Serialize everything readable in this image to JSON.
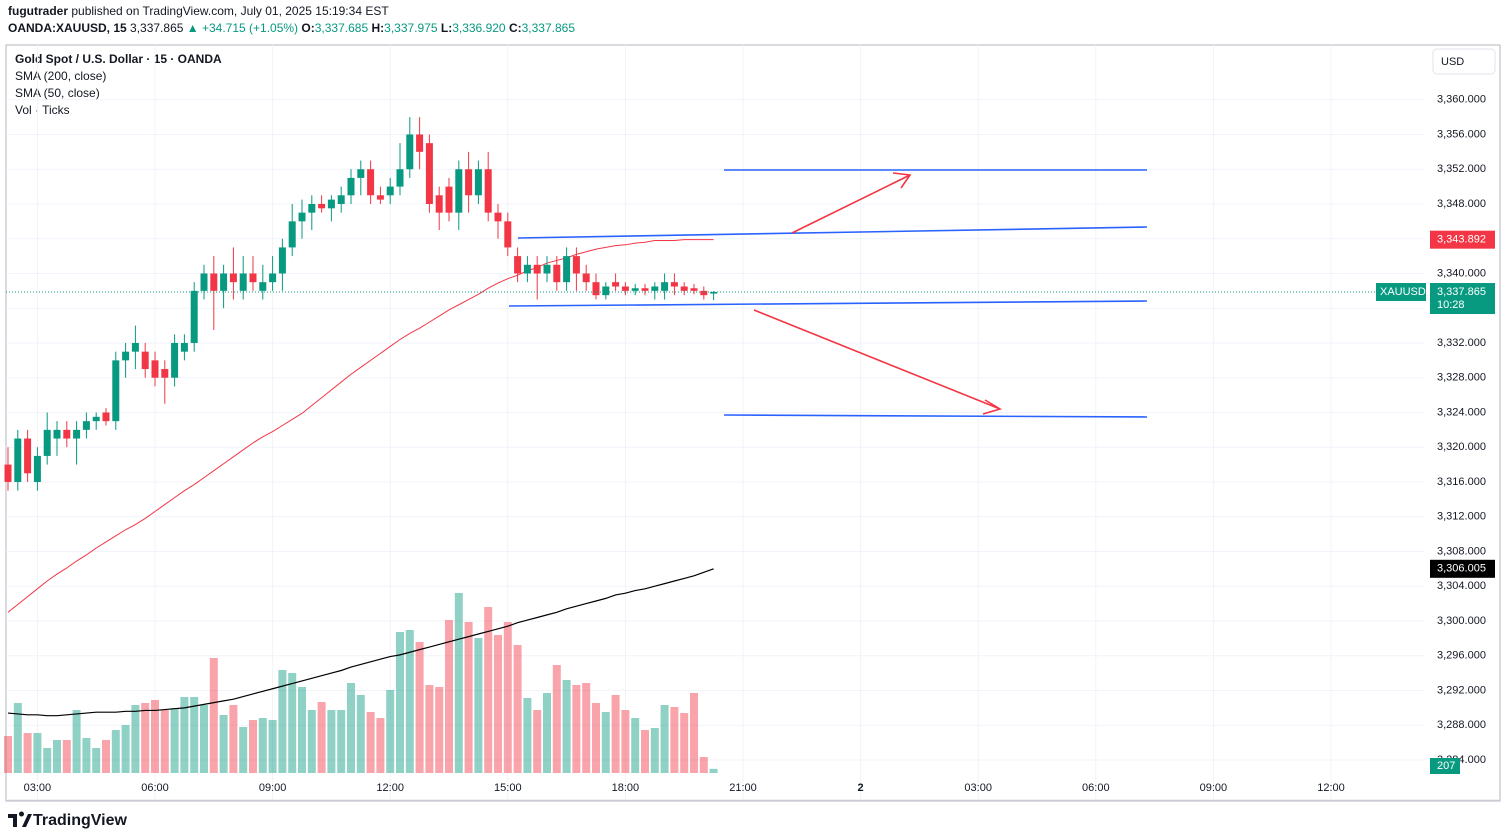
{
  "header": {
    "author": "fugutrader",
    "published": "published on TradingView.com, July 01, 2025 15:19:34 EST",
    "symbol": "OANDA:XAUUSD, 15",
    "last": "3,337.865",
    "change": "▲ +34.715 (+1.05%)",
    "ohlc": [
      {
        "key": "O:",
        "value": "3,337.685"
      },
      {
        "key": "H:",
        "value": "3,337.975"
      },
      {
        "key": "L:",
        "value": "3,336.920"
      },
      {
        "key": "C:",
        "value": "3,337.865"
      }
    ]
  },
  "footer": {
    "brand": "TradingView"
  },
  "chart_data": {
    "type": "candlestick",
    "title": "Gold Spot / U.S. Dollar · 15 · OANDA",
    "currency": "USD",
    "up_color": "#089981",
    "down_color": "#f23645",
    "open": [
      3318,
      3316,
      3321,
      3316,
      3319,
      3321,
      3322,
      3321,
      3322,
      3323,
      3324,
      3323,
      3330,
      3331,
      3331,
      3330,
      3329,
      3328,
      3331,
      3332,
      3338,
      3340,
      3338,
      3340,
      3338,
      3340,
      3338,
      3339,
      3340,
      3343,
      3346,
      3347,
      3348,
      3347.5,
      3348,
      3349,
      3351,
      3352,
      3349,
      3349,
      3350,
      3352,
      3356,
      3355,
      3349,
      3350,
      3347,
      3352,
      3349,
      3352,
      3347,
      3346,
      3342,
      3340,
      3341,
      3340,
      3341,
      3339,
      3342,
      3340,
      3339,
      3337.5,
      3339,
      3338.5,
      3338,
      3338.3,
      3338,
      3338,
      3339,
      3338.5,
      3338.3,
      3338,
      3337.685
    ],
    "high": [
      3320,
      3322,
      3322,
      3320,
      3324,
      3323,
      3323,
      3323,
      3324,
      3324,
      3324.5,
      3331,
      3332,
      3334,
      3332,
      3331,
      3330,
      3333,
      3333,
      3339,
      3341,
      3342,
      3341,
      3343,
      3342,
      3342,
      3341,
      3342,
      3344,
      3348,
      3348.5,
      3349,
      3349,
      3349,
      3350,
      3352,
      3353,
      3353,
      3350,
      3351,
      3355,
      3358,
      3358,
      3356,
      3350,
      3351,
      3353,
      3354,
      3353,
      3354,
      3348,
      3347,
      3343,
      3342,
      3342,
      3342,
      3342,
      3343,
      3343,
      3341,
      3340,
      3339,
      3340,
      3339,
      3338.8,
      3338.8,
      3339,
      3340,
      3340,
      3339,
      3338.8,
      3338.5,
      3337.975
    ],
    "low": [
      3315,
      3315,
      3316,
      3315,
      3318,
      3319,
      3320,
      3318,
      3321,
      3322,
      3322.5,
      3322,
      3328,
      3329,
      3328,
      3327,
      3325,
      3327,
      3330,
      3331,
      3337,
      3333.5,
      3336,
      3337,
      3337,
      3338,
      3337,
      3338,
      3338,
      3342,
      3344,
      3345,
      3347,
      3346,
      3347,
      3348,
      3349,
      3348,
      3348,
      3348,
      3349,
      3351,
      3352,
      3347,
      3345,
      3346,
      3345,
      3347,
      3348,
      3346,
      3344,
      3342,
      3339,
      3339,
      3337,
      3339,
      3338,
      3338,
      3338,
      3338,
      3337,
      3337,
      3338,
      3337.5,
      3337.5,
      3337.5,
      3337,
      3337,
      3337.5,
      3337.5,
      3337.6,
      3337,
      3336.92
    ],
    "close": [
      3316,
      3321,
      3317,
      3319,
      3322,
      3322,
      3321,
      3322,
      3323,
      3323.5,
      3323,
      3330,
      3331,
      3332,
      3329,
      3328,
      3328,
      3332,
      3332,
      3338,
      3340,
      3338,
      3340,
      3339,
      3340,
      3339,
      3339,
      3340,
      3343,
      3346,
      3347,
      3348,
      3347.5,
      3348.5,
      3349,
      3351,
      3352,
      3349,
      3348.5,
      3350,
      3352,
      3356,
      3354,
      3348,
      3347,
      3347,
      3352,
      3349,
      3352,
      3347,
      3346,
      3343,
      3340,
      3341,
      3340,
      3341,
      3339,
      3342,
      3340,
      3339,
      3337.5,
      3338.5,
      3338.5,
      3338,
      3338.3,
      3338,
      3338.5,
      3339,
      3338.5,
      3338,
      3338,
      3337.5,
      3337.865
    ],
    "volume_name": "Vol · Ticks",
    "volumes": [
      1850,
      3500,
      2000,
      2000,
      1250,
      1650,
      1650,
      3150,
      1750,
      1250,
      1650,
      2150,
      2400,
      3400,
      3500,
      3650,
      3150,
      3250,
      3800,
      3800,
      3400,
      5750,
      2900,
      3400,
      2300,
      2650,
      2750,
      2650,
      5150,
      5000,
      4300,
      3150,
      3550,
      3150,
      3150,
      4500,
      3900,
      3050,
      2750,
      4150,
      7050,
      7150,
      6550,
      4400,
      4300,
      7650,
      9000,
      7550,
      6750,
      8300,
      6900,
      7550,
      6400,
      3750,
      3150,
      4000,
      5400,
      4650,
      4400,
      4500,
      3500,
      3050,
      3900,
      3150,
      2750,
      2150,
      2250,
      3400,
      3300,
      3000,
      4000,
      800,
      207
    ],
    "series": [
      {
        "name": "SMA (200, close)",
        "color": "#000000",
        "values": [
          3289.4,
          3289.3,
          3289.2,
          3289.2,
          3289.1,
          3289.1,
          3289.2,
          3289.3,
          3289.4,
          3289.5,
          3289.5,
          3289.5,
          3289.6,
          3289.6,
          3289.7,
          3289.7,
          3289.8,
          3289.9,
          3290.0,
          3290.2,
          3290.4,
          3290.6,
          3290.8,
          3291.0,
          3291.3,
          3291.6,
          3291.9,
          3292.2,
          3292.5,
          3292.8,
          3293.1,
          3293.4,
          3293.7,
          3294.0,
          3294.3,
          3294.7,
          3295.0,
          3295.3,
          3295.6,
          3295.9,
          3296.1,
          3296.4,
          3296.7,
          3297.0,
          3297.3,
          3297.6,
          3297.9,
          3298.2,
          3298.5,
          3298.8,
          3299.1,
          3299.4,
          3299.8,
          3300.1,
          3300.4,
          3300.7,
          3301.0,
          3301.4,
          3301.7,
          3302.0,
          3302.3,
          3302.6,
          3303.0,
          3303.2,
          3303.5,
          3303.7,
          3304.0,
          3304.3,
          3304.6,
          3304.9,
          3305.2,
          3305.6,
          3306.005
        ]
      },
      {
        "name": "SMA (50, close)",
        "color": "#f23645",
        "values": [
          3301.0,
          3301.9,
          3302.8,
          3303.7,
          3304.6,
          3305.4,
          3306.1,
          3306.9,
          3307.6,
          3308.4,
          3309.1,
          3309.8,
          3310.5,
          3311.1,
          3311.8,
          3312.6,
          3313.4,
          3314.2,
          3315.0,
          3315.7,
          3316.5,
          3317.3,
          3318.1,
          3318.9,
          3319.7,
          3320.5,
          3321.2,
          3321.8,
          3322.5,
          3323.2,
          3323.9,
          3324.8,
          3325.7,
          3326.6,
          3327.5,
          3328.4,
          3329.2,
          3330.0,
          3330.8,
          3331.6,
          3332.4,
          3333.1,
          3333.7,
          3334.4,
          3335.1,
          3335.8,
          3336.4,
          3337.0,
          3337.6,
          3338.3,
          3338.9,
          3339.4,
          3339.8,
          3340.3,
          3340.7,
          3341.2,
          3341.5,
          3341.8,
          3342.2,
          3342.5,
          3342.8,
          3343.0,
          3343.2,
          3343.3,
          3343.5,
          3343.6,
          3343.8,
          3343.8,
          3343.8,
          3343.9,
          3343.9,
          3343.9,
          3343.892
        ]
      }
    ],
    "last_price": {
      "value": 3337.865,
      "label": "3,337.865",
      "symbol": "XAUUSD",
      "countdown": "10:28",
      "color": "#089981"
    },
    "price_badges": [
      {
        "value": 3343.892,
        "label": "3,343.892",
        "color": "#f23645"
      },
      {
        "value": 3306.005,
        "label": "3,306.005",
        "color": "#000000"
      }
    ],
    "ylim": [
      3282.5,
      3366.3
    ],
    "yticks": [
      {
        "value": 3284,
        "label": "3,284.000"
      },
      {
        "value": 3288,
        "label": "3,288.000"
      },
      {
        "value": 3292,
        "label": "3,292.000"
      },
      {
        "value": 3296,
        "label": "3,296.000"
      },
      {
        "value": 3300,
        "label": "3,300.000"
      },
      {
        "value": 3304,
        "label": "3,304.000"
      },
      {
        "value": 3308,
        "label": "3,308.000"
      },
      {
        "value": 3312,
        "label": "3,312.000"
      },
      {
        "value": 3316,
        "label": "3,316.000"
      },
      {
        "value": 3320,
        "label": "3,320.000"
      },
      {
        "value": 3324,
        "label": "3,324.000"
      },
      {
        "value": 3328,
        "label": "3,328.000"
      },
      {
        "value": 3332,
        "label": "3,332.000"
      },
      {
        "value": 3336,
        "label": "3,336.000"
      },
      {
        "value": 3340,
        "label": "3,340.000"
      },
      {
        "value": 3344,
        "label": "3,344.000"
      },
      {
        "value": 3348,
        "label": "3,348.000"
      },
      {
        "value": 3352,
        "label": "3,352.000"
      },
      {
        "value": 3356,
        "label": "3,356.000"
      },
      {
        "value": 3360,
        "label": "3,360.000"
      }
    ],
    "xticks": [
      "03:00",
      "06:00",
      "09:00",
      "12:00",
      "15:00",
      "18:00",
      "21:00",
      "2",
      "03:00",
      "06:00",
      "09:00",
      "12:00"
    ],
    "grid": true
  }
}
